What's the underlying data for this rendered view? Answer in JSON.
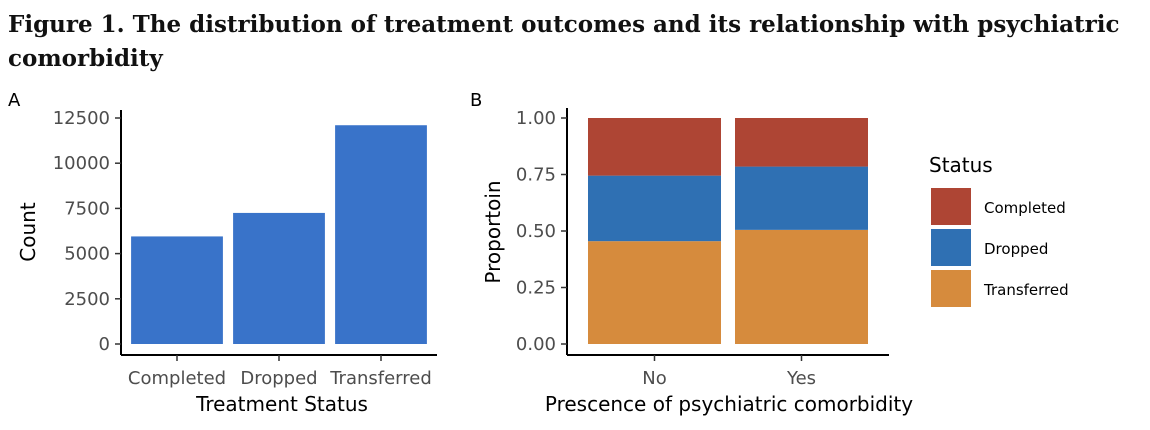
{
  "figure": {
    "title": "Figure 1.  The distribution of treatment outcomes and its relationship with psychiatric comorbidity"
  },
  "chart_data": [
    {
      "type": "bar",
      "panel": "A",
      "title": "",
      "categories": [
        "Completed",
        "Dropped",
        "Transferred"
      ],
      "values": [
        5950,
        7250,
        12100
      ],
      "xlabel": "Treatment Status",
      "ylabel": "Count",
      "ylim": [
        0,
        12500
      ],
      "yticks": [
        0,
        2500,
        5000,
        7500,
        10000,
        12500
      ],
      "ytick_labels": [
        "0",
        "2500",
        "5000",
        "7500",
        "10000",
        "12500"
      ],
      "bar_color": "#3973C9",
      "grid": false
    },
    {
      "type": "bar",
      "stacked": true,
      "panel": "B",
      "title": "",
      "categories": [
        "No",
        "Yes"
      ],
      "xlabel": "Prescence of psychiatric comorbidity",
      "ylabel": "Proportoin",
      "ylim": [
        0,
        1
      ],
      "yticks": [
        0,
        0.25,
        0.5,
        0.75,
        1.0
      ],
      "ytick_labels": [
        "0.00",
        "0.25",
        "0.50",
        "0.75",
        "1.00"
      ],
      "grid": false,
      "legend": {
        "title": "Status",
        "position": "right"
      },
      "series": [
        {
          "name": "Transferred",
          "color": "#D68B3D",
          "values": [
            0.455,
            0.505
          ]
        },
        {
          "name": "Dropped",
          "color": "#2F70B3",
          "values": [
            0.29,
            0.28
          ]
        },
        {
          "name": "Completed",
          "color": "#AE4534",
          "values": [
            0.255,
            0.215
          ]
        }
      ],
      "legend_order": [
        "Completed",
        "Dropped",
        "Transferred"
      ]
    }
  ]
}
